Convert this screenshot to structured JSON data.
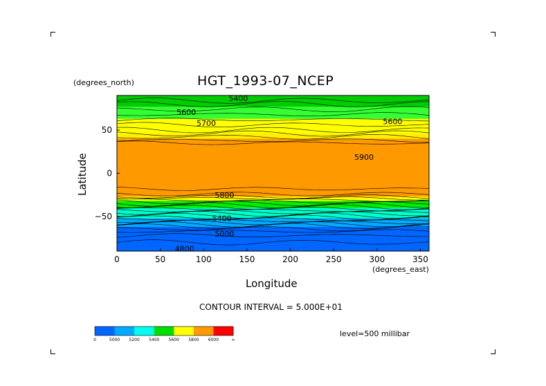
{
  "chart_data": {
    "type": "heatmap",
    "title": "HGT_1993-07_NCEP",
    "xlabel": "Longitude",
    "ylabel": "Latitude",
    "x_units": "(degrees_east)",
    "y_units": "(degrees_north)",
    "xlim": [
      0,
      360
    ],
    "ylim": [
      -90,
      90
    ],
    "x_ticks": [
      0,
      50,
      100,
      150,
      200,
      250,
      300,
      350
    ],
    "y_ticks": [
      50,
      0,
      -50
    ],
    "contour_interval_label": "CONTOUR INTERVAL = 5.000E+01",
    "level_label": "level=500 millibar",
    "bands": [
      {
        "lat_from": 90,
        "lat_to": 77,
        "color": "#00cc00"
      },
      {
        "lat_from": 77,
        "lat_to": 63,
        "color": "#33ff33"
      },
      {
        "lat_from": 63,
        "lat_to": 46,
        "color": "#ffff00"
      },
      {
        "lat_from": 46,
        "lat_to": 40,
        "color": "#ffee00"
      },
      {
        "lat_from": 40,
        "lat_to": -27,
        "color": "#ff9900"
      },
      {
        "lat_from": -27,
        "lat_to": -32,
        "color": "#ffff00"
      },
      {
        "lat_from": -32,
        "lat_to": -40,
        "color": "#00ee00"
      },
      {
        "lat_from": -40,
        "lat_to": -52,
        "color": "#00ffcc"
      },
      {
        "lat_from": -52,
        "lat_to": -62,
        "color": "#00aaff"
      },
      {
        "lat_from": -62,
        "lat_to": -90,
        "color": "#0066ff"
      }
    ],
    "contour_labels": [
      {
        "text": "5400",
        "lon": 140,
        "lat": 87
      },
      {
        "text": "5600",
        "lon": 80,
        "lat": 71
      },
      {
        "text": "5700",
        "lon": 103,
        "lat": 58
      },
      {
        "text": "5600",
        "lon": 318,
        "lat": 60
      },
      {
        "text": "5900",
        "lon": 285,
        "lat": 19
      },
      {
        "text": "5800",
        "lon": 124,
        "lat": -25
      },
      {
        "text": "5400",
        "lon": 121,
        "lat": -52
      },
      {
        "text": "5000",
        "lon": 124,
        "lat": -70
      },
      {
        "text": "4800",
        "lon": 78,
        "lat": -87
      }
    ],
    "colorbar": {
      "colors": [
        "#0066ff",
        "#00aaff",
        "#00ffee",
        "#00dd00",
        "#ffff00",
        "#ff9900",
        "#ff0000"
      ],
      "labels": [
        "0",
        "5000",
        "5200",
        "5400",
        "5600",
        "5800",
        "6000",
        "∞"
      ]
    }
  }
}
